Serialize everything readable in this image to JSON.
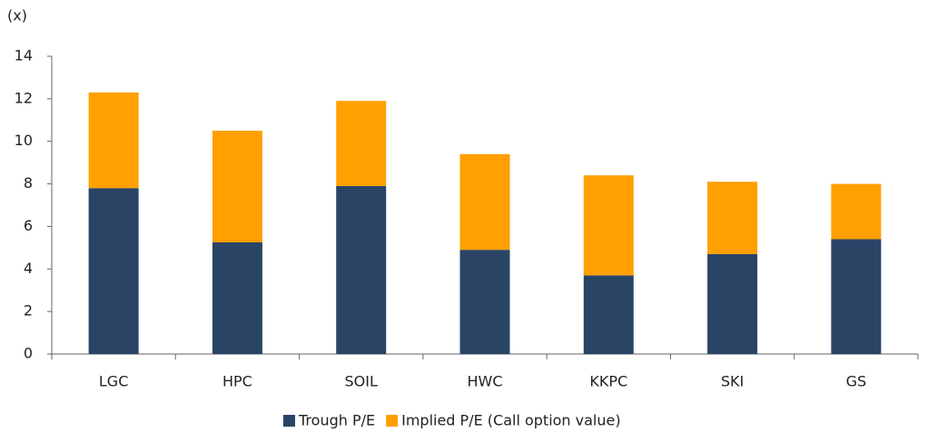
{
  "chart_data": {
    "type": "stacked_bar",
    "y_label": "(x)",
    "categories": [
      "LGC",
      "HPC",
      "SOIL",
      "HWC",
      "KKPC",
      "SKI",
      "GS"
    ],
    "series": [
      {
        "name": "Trough P/E",
        "color": "#2a4466",
        "values": [
          7.8,
          5.25,
          7.9,
          4.9,
          3.7,
          4.7,
          5.4
        ]
      },
      {
        "name": "Implied P/E (Call option value)",
        "color": "#ff9f00",
        "values": [
          4.5,
          5.25,
          4.0,
          4.5,
          4.7,
          3.4,
          2.6
        ]
      }
    ],
    "ylim": [
      0,
      14
    ],
    "yticks": [
      0,
      2,
      4,
      6,
      8,
      10,
      12,
      14
    ]
  }
}
